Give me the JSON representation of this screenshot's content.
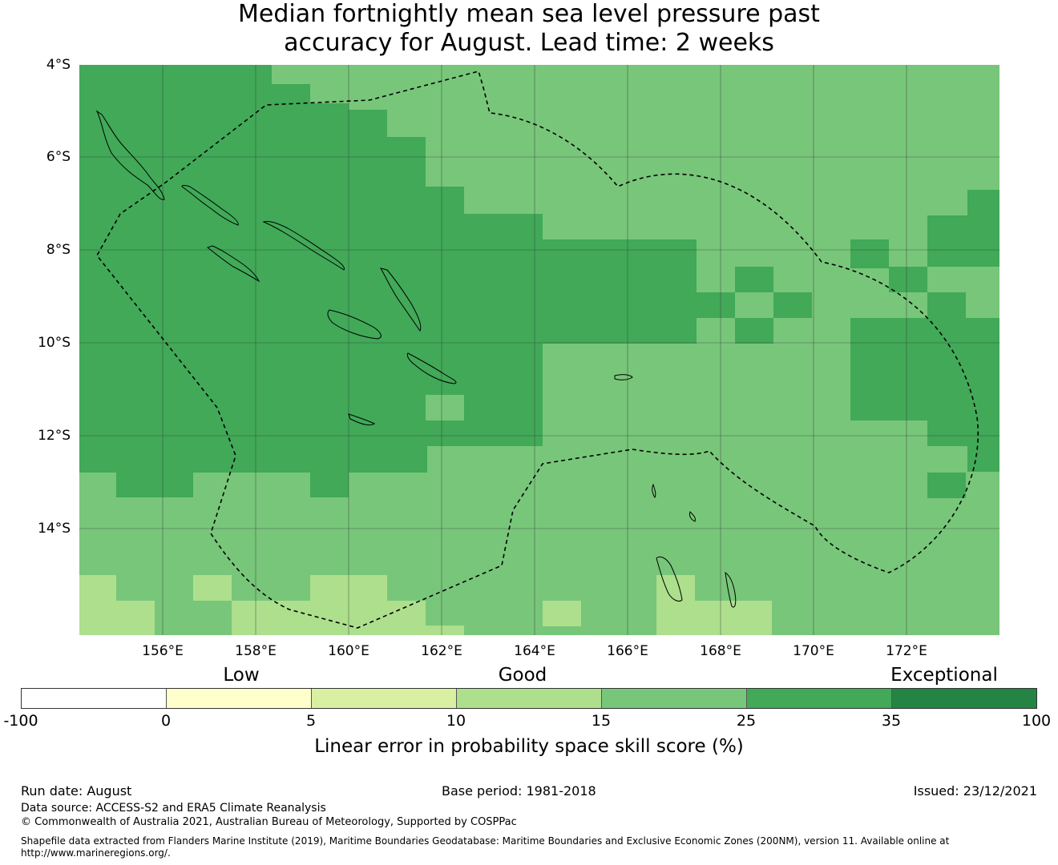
{
  "title": {
    "line1": "Median fortnightly mean sea level pressure past",
    "line2": "accuracy for August. Lead time: 2 weeks"
  },
  "map": {
    "extent": {
      "lon_min": 154.2,
      "lon_max": 174.0,
      "lat_min": -16.4,
      "lat_max": -4.0
    },
    "lat_labels": [
      "4°S",
      "6°S",
      "8°S",
      "10°S",
      "12°S",
      "14°S"
    ],
    "lon_labels": [
      "156°E",
      "158°E",
      "160°E",
      "162°E",
      "164°E",
      "166°E",
      "168°E",
      "170°E",
      "172°E"
    ],
    "colors": {
      "class_15_25": "#78c67a",
      "class_25_35": "#41a958",
      "class_10_15": "#addf8d",
      "class_5_10": "#d9f0a3",
      "grid": "#333333",
      "coast": "#000000",
      "eez": "#000000"
    }
  },
  "legend": {
    "qualitative": [
      "Low",
      "Good",
      "Exceptional"
    ],
    "ticks": [
      "-100",
      "0",
      "5",
      "10",
      "15",
      "25",
      "35",
      "100"
    ],
    "colors": [
      "#ffffff",
      "#ffffcc",
      "#d9f0a3",
      "#addf8d",
      "#78c67a",
      "#41a958",
      "#238443"
    ],
    "label": "Linear error in probability space skill score (%)"
  },
  "footer": {
    "run_date": "Run date: August",
    "base_period": "Base period: 1981-2018",
    "issued": "Issued: 23/12/2021",
    "data_source": "Data source: ACCESS-S2 and ERA5 Climate Reanalysis",
    "copyright": "© Commonwealth of Australia 2021, Australian Bureau of Meteorology, Supported by COSPPac",
    "shapefile": "Shapefile data extracted from Flanders Marine Institute (2019), Maritime Boundaries Geodatabase: Maritime Boundaries and Exclusive Economic Zones (200NM), version 11. Available online at http://www.marineregions.org/."
  }
}
